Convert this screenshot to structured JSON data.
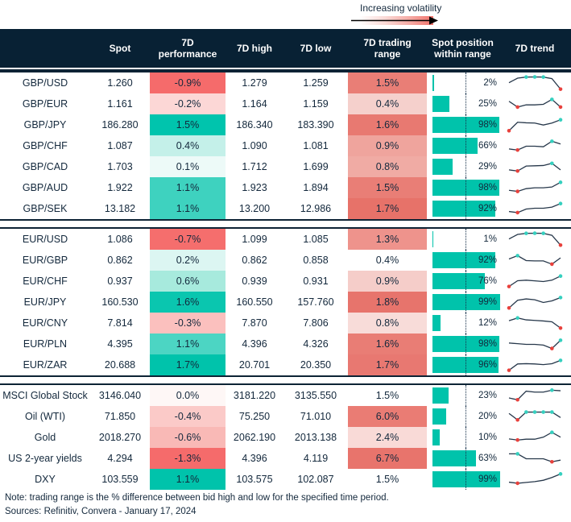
{
  "legend": {
    "label": "Increasing volatility"
  },
  "colors": {
    "header_bg": "#082134",
    "text": "#13283c",
    "teal": "#00c3ab",
    "red": "#f56b6b",
    "bar": "#00c3ab",
    "spark_line": "#26374a",
    "spark_min_dot": "#e8413c",
    "spark_max_dot": "#35d0bf",
    "gradient_end": "#f2746d"
  },
  "note": "Note: trading range is the % difference between bid high and low for the specified time period.",
  "sources": "Sources: Refinitiv, Convera - January 17, 2024",
  "chart_data": {
    "type": "table",
    "legend": "Increasing volatility",
    "columns": [
      "",
      "Spot",
      "7D performance",
      "7D high",
      "7D low",
      "7D trading range",
      "Spot position within range",
      "7D trend"
    ],
    "sections": [
      {
        "rows": [
          {
            "label": "GBP/USD",
            "spot": "1.260",
            "perf": "-0.9%",
            "perf_color": "#f56b6b",
            "high": "1.279",
            "low": "1.259",
            "range": "1.5%",
            "range_color": "#e97e76",
            "position_pct": 2,
            "position_label": "2%",
            "spark": {
              "y": [
                0.55,
                0.88,
                0.96,
                0.97,
                0.96,
                0.85,
                0.08
              ],
              "max": [
                2,
                3,
                4
              ],
              "min": [
                6
              ]
            }
          },
          {
            "label": "GBP/EUR",
            "spot": "1.161",
            "perf": "-0.2%",
            "perf_color": "#fcd7d6",
            "high": "1.164",
            "low": "1.159",
            "range": "0.4%",
            "range_color": "#f5d0cc",
            "position_pct": 25,
            "position_label": "25%",
            "spark": {
              "y": [
                0.72,
                0.3,
                0.46,
                0.46,
                0.5,
                0.86,
                0.3
              ],
              "max": [
                5
              ],
              "min": [
                1,
                6
              ]
            }
          },
          {
            "label": "GBP/JPY",
            "spot": "186.280",
            "perf": "1.5%",
            "perf_color": "#00c4ad",
            "high": "186.340",
            "low": "183.390",
            "range": "1.6%",
            "range_color": "#e87971",
            "position_pct": 98,
            "position_label": "98%",
            "spark": {
              "y": [
                0.1,
                0.72,
                0.68,
                0.66,
                0.52,
                0.66,
                0.9
              ],
              "max": [
                6
              ],
              "min": [
                0
              ]
            }
          },
          {
            "label": "GBP/CHF",
            "spot": "1.087",
            "perf": "0.4%",
            "perf_color": "#c4f0e9",
            "high": "1.090",
            "low": "1.081",
            "range": "0.9%",
            "range_color": "#efa49d",
            "position_pct": 66,
            "position_label": "66%",
            "spark": {
              "y": [
                0.3,
                0.22,
                0.5,
                0.5,
                0.46,
                0.86,
                0.66
              ],
              "max": [
                5
              ],
              "min": [
                1
              ]
            }
          },
          {
            "label": "GBP/CAD",
            "spot": "1.703",
            "perf": "0.1%",
            "perf_color": "#edfaf8",
            "high": "1.712",
            "low": "1.699",
            "range": "0.8%",
            "range_color": "#f0aba4",
            "position_pct": 29,
            "position_label": "29%",
            "spark": {
              "y": [
                0.3,
                0.22,
                0.58,
                0.6,
                0.62,
                0.78,
                0.3
              ],
              "max": [
                5
              ],
              "min": [
                1
              ]
            }
          },
          {
            "label": "GBP/AUD",
            "spot": "1.922",
            "perf": "1.1%",
            "perf_color": "#3ed2bf",
            "high": "1.923",
            "low": "1.894",
            "range": "1.5%",
            "range_color": "#e97e76",
            "position_pct": 98,
            "position_label": "98%",
            "spark": {
              "y": [
                0.34,
                0.26,
                0.46,
                0.52,
                0.52,
                0.58,
                0.92
              ],
              "max": [
                6
              ],
              "min": [
                1
              ]
            }
          },
          {
            "label": "GBP/SEK",
            "spot": "13.182",
            "perf": "1.1%",
            "perf_color": "#3ed2bf",
            "high": "13.200",
            "low": "12.986",
            "range": "1.7%",
            "range_color": "#e77269",
            "position_pct": 92,
            "position_label": "92%",
            "spark": {
              "y": [
                0.32,
                0.24,
                0.5,
                0.56,
                0.56,
                0.64,
                0.9
              ],
              "max": [
                6
              ],
              "min": [
                1
              ]
            }
          }
        ]
      },
      {
        "rows": [
          {
            "label": "EUR/USD",
            "spot": "1.086",
            "perf": "-0.7%",
            "perf_color": "#f56e6d",
            "high": "1.099",
            "low": "1.085",
            "range": "1.3%",
            "range_color": "#ee938c",
            "position_pct": 1,
            "position_label": "1%",
            "spark": {
              "y": [
                0.55,
                0.88,
                0.96,
                0.97,
                0.96,
                0.82,
                0.1
              ],
              "max": [
                2,
                3,
                4
              ],
              "min": [
                6
              ]
            }
          },
          {
            "label": "EUR/GBP",
            "spot": "0.862",
            "perf": "0.2%",
            "perf_color": "#dcf6f2",
            "high": "0.862",
            "low": "0.858",
            "range": "0.4%",
            "range_color": "#ffffff",
            "position_pct": 92,
            "position_label": "92%",
            "spark": {
              "y": [
                0.62,
                0.86,
                0.5,
                0.48,
                0.48,
                0.24,
                0.7
              ],
              "max": [
                1
              ],
              "min": [
                5
              ]
            }
          },
          {
            "label": "EUR/CHF",
            "spot": "0.937",
            "perf": "0.6%",
            "perf_color": "#a7eadd",
            "high": "0.939",
            "low": "0.931",
            "range": "0.9%",
            "range_color": "#f5cdc9",
            "position_pct": 76,
            "position_label": "76%",
            "spark": {
              "y": [
                0.14,
                0.56,
                0.6,
                0.55,
                0.5,
                0.6,
                0.9
              ],
              "max": [
                6
              ],
              "min": [
                0
              ]
            }
          },
          {
            "label": "EUR/JPY",
            "spot": "160.530",
            "perf": "1.6%",
            "perf_color": "#0ac6af",
            "high": "160.550",
            "low": "157.760",
            "range": "1.8%",
            "range_color": "#e7746c",
            "position_pct": 99,
            "position_label": "99%",
            "spark": {
              "y": [
                0.1,
                0.66,
                0.76,
                0.7,
                0.5,
                0.62,
                0.86
              ],
              "max": [
                6
              ],
              "min": [
                0
              ]
            }
          },
          {
            "label": "EUR/CNY",
            "spot": "7.814",
            "perf": "-0.3%",
            "perf_color": "#fbc0be",
            "high": "7.870",
            "low": "7.806",
            "range": "0.8%",
            "range_color": "#f8dcd9",
            "position_pct": 12,
            "position_label": "12%",
            "spark": {
              "y": [
                0.7,
                0.9,
                0.76,
                0.72,
                0.68,
                0.62,
                0.16
              ],
              "max": [
                1
              ],
              "min": [
                6
              ]
            }
          },
          {
            "label": "EUR/PLN",
            "spot": "4.395",
            "perf": "1.1%",
            "perf_color": "#4cd5c3",
            "high": "4.396",
            "low": "4.326",
            "range": "1.6%",
            "range_color": "#e97d75",
            "position_pct": 98,
            "position_label": "98%",
            "spark": {
              "y": [
                0.6,
                0.55,
                0.5,
                0.5,
                0.45,
                0.2,
                0.8
              ],
              "max": [
                6
              ],
              "min": [
                5
              ]
            }
          },
          {
            "label": "EUR/ZAR",
            "spot": "20.688",
            "perf": "1.7%",
            "perf_color": "#00c3ab",
            "high": "20.701",
            "low": "20.350",
            "range": "1.7%",
            "range_color": "#e87871",
            "position_pct": 96,
            "position_label": "96%",
            "spark": {
              "y": [
                0.14,
                0.6,
                0.62,
                0.6,
                0.55,
                0.62,
                0.86
              ],
              "max": [
                6
              ],
              "min": [
                0
              ]
            }
          }
        ]
      },
      {
        "rows": [
          {
            "label": "MSCI Global Stock",
            "spot": "3146.040",
            "perf": "0.0%",
            "perf_color": "#fef7f6",
            "high": "3181.220",
            "low": "3135.550",
            "range": "1.5%",
            "range_color": "#ffffff",
            "position_pct": 23,
            "position_label": "23%",
            "spark": {
              "y": [
                0.35,
                0.22,
                0.85,
                0.78,
                0.78,
                0.92,
                0.88
              ],
              "max": [
                5
              ],
              "min": [
                1
              ]
            }
          },
          {
            "label": "Oil (WTI)",
            "spot": "71.850",
            "perf": "-0.4%",
            "perf_color": "#fbcac8",
            "high": "75.250",
            "low": "71.010",
            "range": "6.0%",
            "range_color": "#ea7c74",
            "position_pct": 20,
            "position_label": "20%",
            "spark": {
              "y": [
                0.75,
                0.28,
                0.85,
                0.85,
                0.85,
                0.85,
                0.45
              ],
              "max": [
                2,
                3,
                4,
                5
              ],
              "min": [
                1
              ]
            }
          },
          {
            "label": "Gold",
            "spot": "2018.270",
            "perf": "-0.6%",
            "perf_color": "#f9b9b6",
            "high": "2062.190",
            "low": "2013.138",
            "range": "2.4%",
            "range_color": "#f9dad7",
            "position_pct": 10,
            "position_label": "10%",
            "spark": {
              "y": [
                0.42,
                0.34,
                0.4,
                0.4,
                0.55,
                0.9,
                0.55
              ],
              "max": [
                5
              ],
              "min": [
                1
              ]
            }
          },
          {
            "label": "US 2-year yields",
            "spot": "4.294",
            "perf": "-1.3%",
            "perf_color": "#f56b6b",
            "high": "4.396",
            "low": "4.119",
            "range": "6.7%",
            "range_color": "#e8746c",
            "position_pct": 63,
            "position_label": "63%",
            "spark": {
              "y": [
                0.86,
                0.86,
                0.5,
                0.5,
                0.5,
                0.28,
                0.4
              ],
              "max": [
                1
              ],
              "min": [
                5
              ]
            }
          },
          {
            "label": "DXY",
            "spot": "103.559",
            "perf": "1.1%",
            "perf_color": "#00c3ab",
            "high": "103.575",
            "low": "102.087",
            "range": "1.5%",
            "range_color": "#ffffff",
            "position_pct": 99,
            "position_label": "99%",
            "spark": {
              "y": [
                0.32,
                0.24,
                0.3,
                0.36,
                0.46,
                0.66,
                0.92
              ],
              "max": [
                6
              ],
              "min": [
                1
              ]
            }
          }
        ]
      }
    ]
  }
}
